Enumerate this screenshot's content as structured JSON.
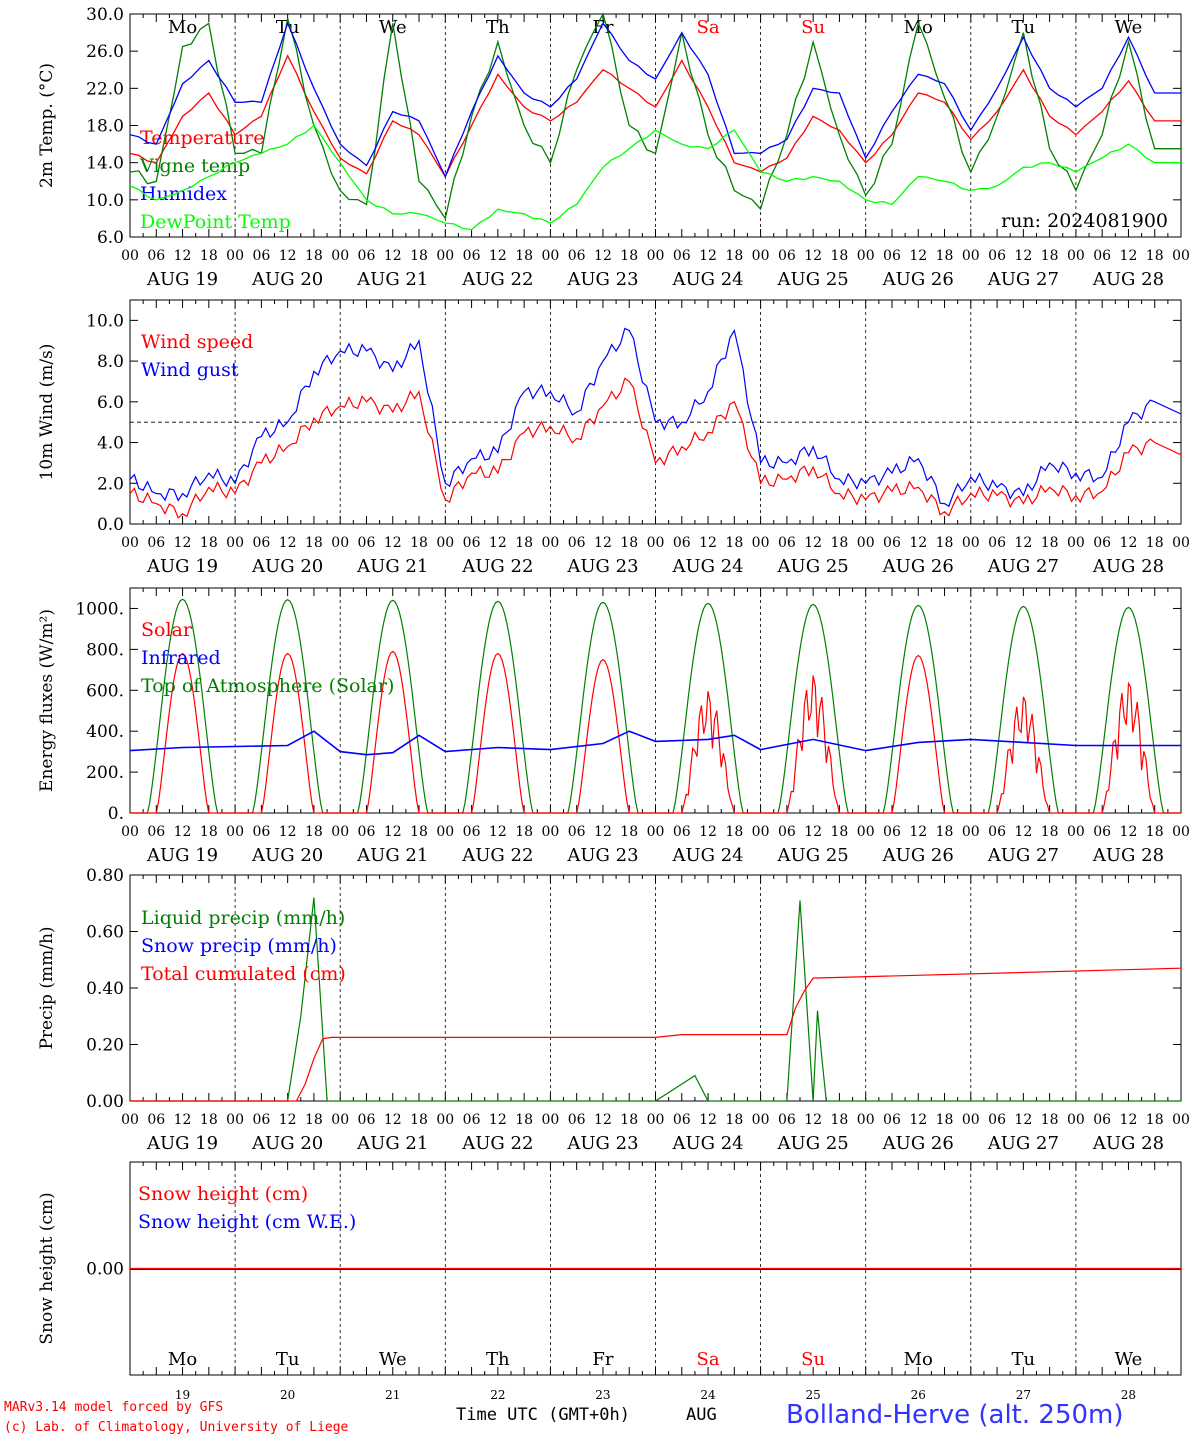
{
  "chart_data": [
    {
      "type": "line",
      "ylabel": "2m Temp. (°C)",
      "ylim": [
        6.0,
        30.0
      ],
      "yticks": [
        "6.0",
        "10.0",
        "14.0",
        "18.0",
        "22.0",
        "26.0",
        "30.0"
      ],
      "day_labels": [
        "Mo",
        "Tu",
        "We",
        "Th",
        "Fr",
        "Sa",
        "Su",
        "Mo",
        "Tu",
        "We"
      ],
      "day_label_colors": [
        "#000000",
        "#000000",
        "#000000",
        "#000000",
        "#000000",
        "#ff0000",
        "#ff0000",
        "#000000",
        "#000000",
        "#000000"
      ],
      "annotation": "run: 2024081900",
      "legend_position": "left",
      "x_hours": [
        0,
        6,
        12,
        18,
        24,
        30,
        36,
        42,
        48,
        54,
        60,
        66,
        72,
        78,
        84,
        90,
        96,
        102,
        108,
        114,
        120,
        126,
        132,
        138,
        144,
        150,
        156,
        162,
        168,
        174,
        180,
        186,
        192,
        198,
        204,
        210,
        216,
        222,
        228,
        234
      ],
      "series": [
        {
          "name": "Temperature",
          "color": "#ff0000",
          "values": [
            15.0,
            14.0,
            19.0,
            21.5,
            17.0,
            19.0,
            25.5,
            19.5,
            14.5,
            12.8,
            18.5,
            17.0,
            12.5,
            18.0,
            23.5,
            20.0,
            18.5,
            20.5,
            24.0,
            22.0,
            20.0,
            25.0,
            20.0,
            14.0,
            13.0,
            14.5,
            19.0,
            17.5,
            14.0,
            17.0,
            21.5,
            20.5,
            16.5,
            19.5,
            24.0,
            19.0,
            17.0,
            19.5,
            22.8,
            18.5
          ]
        },
        {
          "name": "Vigne temp",
          "color": "#008000",
          "values": [
            13.0,
            12.0,
            26.5,
            29.0,
            15.0,
            15.0,
            29.5,
            18.0,
            11.0,
            9.5,
            29.0,
            12.0,
            8.0,
            19.0,
            27.0,
            18.0,
            14.0,
            24.0,
            30.0,
            18.0,
            15.0,
            28.0,
            17.0,
            11.0,
            9.0,
            17.0,
            27.0,
            17.0,
            10.5,
            16.0,
            29.0,
            21.0,
            13.0,
            19.0,
            28.0,
            15.5,
            11.0,
            17.0,
            27.0,
            15.5
          ]
        },
        {
          "name": "Humidex",
          "color": "#0000ff",
          "values": [
            17.0,
            16.0,
            22.5,
            25.0,
            20.5,
            20.5,
            29.0,
            22.0,
            16.0,
            13.7,
            19.5,
            18.5,
            12.5,
            19.5,
            25.5,
            21.5,
            20.0,
            23.0,
            29.0,
            25.0,
            23.0,
            28.0,
            23.5,
            15.0,
            15.0,
            16.5,
            22.0,
            21.5,
            14.5,
            19.5,
            23.5,
            22.5,
            17.5,
            22.0,
            27.5,
            22.0,
            20.0,
            22.0,
            27.5,
            21.5
          ]
        },
        {
          "name": "DewPoint Temp",
          "color": "#00ff00",
          "values": [
            11.5,
            10.0,
            11.0,
            12.5,
            14.0,
            15.0,
            16.0,
            18.0,
            14.0,
            10.0,
            8.5,
            8.5,
            7.5,
            6.8,
            9.0,
            8.5,
            7.5,
            9.5,
            13.5,
            15.5,
            17.5,
            16.0,
            15.5,
            17.5,
            13.0,
            12.0,
            12.5,
            12.0,
            10.0,
            9.5,
            12.5,
            12.0,
            11.0,
            11.5,
            13.5,
            14.0,
            13.0,
            14.5,
            16.0,
            14.0
          ]
        }
      ]
    },
    {
      "type": "line",
      "ylabel": "10m Wind (m/s)",
      "ylim": [
        0.0,
        11.0
      ],
      "yticks": [
        "0.0",
        "2.0",
        "4.0",
        "6.0",
        "8.0",
        "10.0"
      ],
      "reference_line": 5.0,
      "legend_position": "left",
      "x_hours": [
        0,
        6,
        12,
        18,
        24,
        30,
        36,
        42,
        48,
        54,
        60,
        66,
        72,
        78,
        84,
        90,
        96,
        102,
        108,
        114,
        120,
        126,
        132,
        138,
        144,
        150,
        156,
        162,
        168,
        174,
        180,
        186,
        192,
        198,
        204,
        210,
        216,
        222,
        228,
        234
      ],
      "series": [
        {
          "name": "Wind speed",
          "color": "#ff0000",
          "values": [
            1.5,
            1.0,
            0.5,
            1.8,
            1.5,
            3.0,
            3.8,
            5.2,
            5.8,
            6.0,
            5.5,
            6.5,
            1.2,
            2.5,
            2.5,
            4.5,
            4.8,
            4.2,
            5.8,
            7.0,
            3.0,
            3.8,
            4.5,
            6.0,
            2.0,
            2.2,
            2.8,
            1.5,
            1.2,
            1.6,
            1.8,
            0.6,
            1.5,
            1.4,
            1.0,
            1.8,
            1.4,
            1.6,
            3.5,
            4.0
          ]
        },
        {
          "name": "Wind gust",
          "color": "#0000ff",
          "values": [
            2.2,
            1.5,
            1.5,
            2.5,
            2.0,
            4.3,
            5.0,
            7.5,
            8.5,
            8.5,
            7.5,
            9.0,
            2.0,
            3.2,
            3.5,
            6.5,
            6.5,
            5.5,
            8.0,
            9.5,
            5.0,
            5.0,
            6.5,
            9.5,
            3.0,
            3.0,
            3.8,
            2.2,
            2.0,
            2.5,
            3.2,
            1.0,
            2.3,
            1.8,
            1.4,
            3.0,
            2.5,
            2.3,
            5.0,
            6.0
          ]
        }
      ]
    },
    {
      "type": "line",
      "ylabel": "Energy fluxes (W/m²)",
      "ylim": [
        0,
        1100
      ],
      "yticks": [
        "0.",
        "200.",
        "400.",
        "600.",
        "800.",
        "1000."
      ],
      "legend_position": "left",
      "series": [
        {
          "name": "Solar",
          "color": "#ff0000",
          "daily_peaks": [
            780,
            780,
            790,
            780,
            750,
            670,
            760,
            770,
            650,
            730
          ]
        },
        {
          "name": "Infrared",
          "color": "#0000ff",
          "x_hours": [
            0,
            12,
            24,
            36,
            42,
            48,
            54,
            60,
            66,
            72,
            84,
            96,
            108,
            114,
            120,
            132,
            138,
            144,
            156,
            168,
            180,
            192,
            204,
            216,
            228,
            240
          ],
          "values": [
            305,
            320,
            325,
            330,
            400,
            300,
            285,
            295,
            380,
            300,
            320,
            310,
            340,
            400,
            350,
            360,
            380,
            310,
            360,
            305,
            345,
            360,
            345,
            330,
            330,
            330
          ]
        },
        {
          "name": "Top of Atmosphere (Solar)",
          "color": "#008000",
          "daily_peaks": [
            1045,
            1043,
            1040,
            1035,
            1030,
            1025,
            1020,
            1015,
            1010,
            1005
          ]
        }
      ]
    },
    {
      "type": "line",
      "ylabel": "Precip (mm/h)",
      "ylim": [
        0.0,
        0.8
      ],
      "yticks": [
        "0.00",
        "0.20",
        "0.40",
        "0.60",
        "0.80"
      ],
      "legend_position": "left",
      "series": [
        {
          "name": "Liquid precip (mm/h)",
          "color": "#008000",
          "x_hours": [
            0,
            36,
            39,
            42,
            45,
            48,
            60,
            120,
            129,
            132,
            144,
            150,
            153,
            156,
            157,
            158,
            159,
            160,
            164,
            168,
            240
          ],
          "values": [
            0,
            0,
            0.3,
            0.72,
            0,
            0,
            0,
            0,
            0.09,
            0,
            0,
            0,
            0.71,
            0,
            0.32,
            0.15,
            0,
            0,
            0,
            0,
            0
          ]
        },
        {
          "name": "Snow precip (mm/h)",
          "color": "#0000ff",
          "values": []
        },
        {
          "name": "Total cumulated (cm)",
          "color": "#ff0000",
          "x_hours": [
            0,
            38,
            40,
            42,
            44,
            46,
            72,
            120,
            126,
            150,
            152,
            154,
            156,
            240
          ],
          "values": [
            0,
            0,
            0.06,
            0.15,
            0.22,
            0.225,
            0.225,
            0.225,
            0.235,
            0.235,
            0.33,
            0.39,
            0.435,
            0.47
          ]
        }
      ]
    },
    {
      "type": "line",
      "ylabel": "Snow height (cm)",
      "ytick": "0.00",
      "legend_position": "left",
      "series": [
        {
          "name": "Snow height (cm)",
          "color": "#ff0000",
          "values": [
            0,
            0
          ]
        },
        {
          "name": "Snow height (cm W.E.)",
          "color": "#0000ff",
          "values": [
            0,
            0
          ]
        }
      ],
      "day_labels": [
        "Mo",
        "Tu",
        "We",
        "Th",
        "Fr",
        "Sa",
        "Su",
        "Mo",
        "Tu",
        "We"
      ],
      "day_numbers": [
        "19",
        "20",
        "21",
        "22",
        "23",
        "24",
        "25",
        "26",
        "27",
        "28"
      ]
    }
  ],
  "x_axis": {
    "hour_ticks": [
      "00",
      "06",
      "12",
      "18"
    ],
    "end_tick": "00",
    "date_labels": [
      "AUG 19",
      "AUG 20",
      "AUG 21",
      "AUG 22",
      "AUG 23",
      "AUG 24",
      "AUG 25",
      "AUG 26",
      "AUG 27",
      "AUG 28"
    ],
    "title": "Time UTC (GMT+0h)",
    "month": "AUG"
  },
  "footer": {
    "credit_line1": "MARv3.14 model forced by GFS",
    "credit_line2": "(c) Lab. of Climatology, University of Liege",
    "station": "Bolland-Herve (alt. 250m)"
  }
}
